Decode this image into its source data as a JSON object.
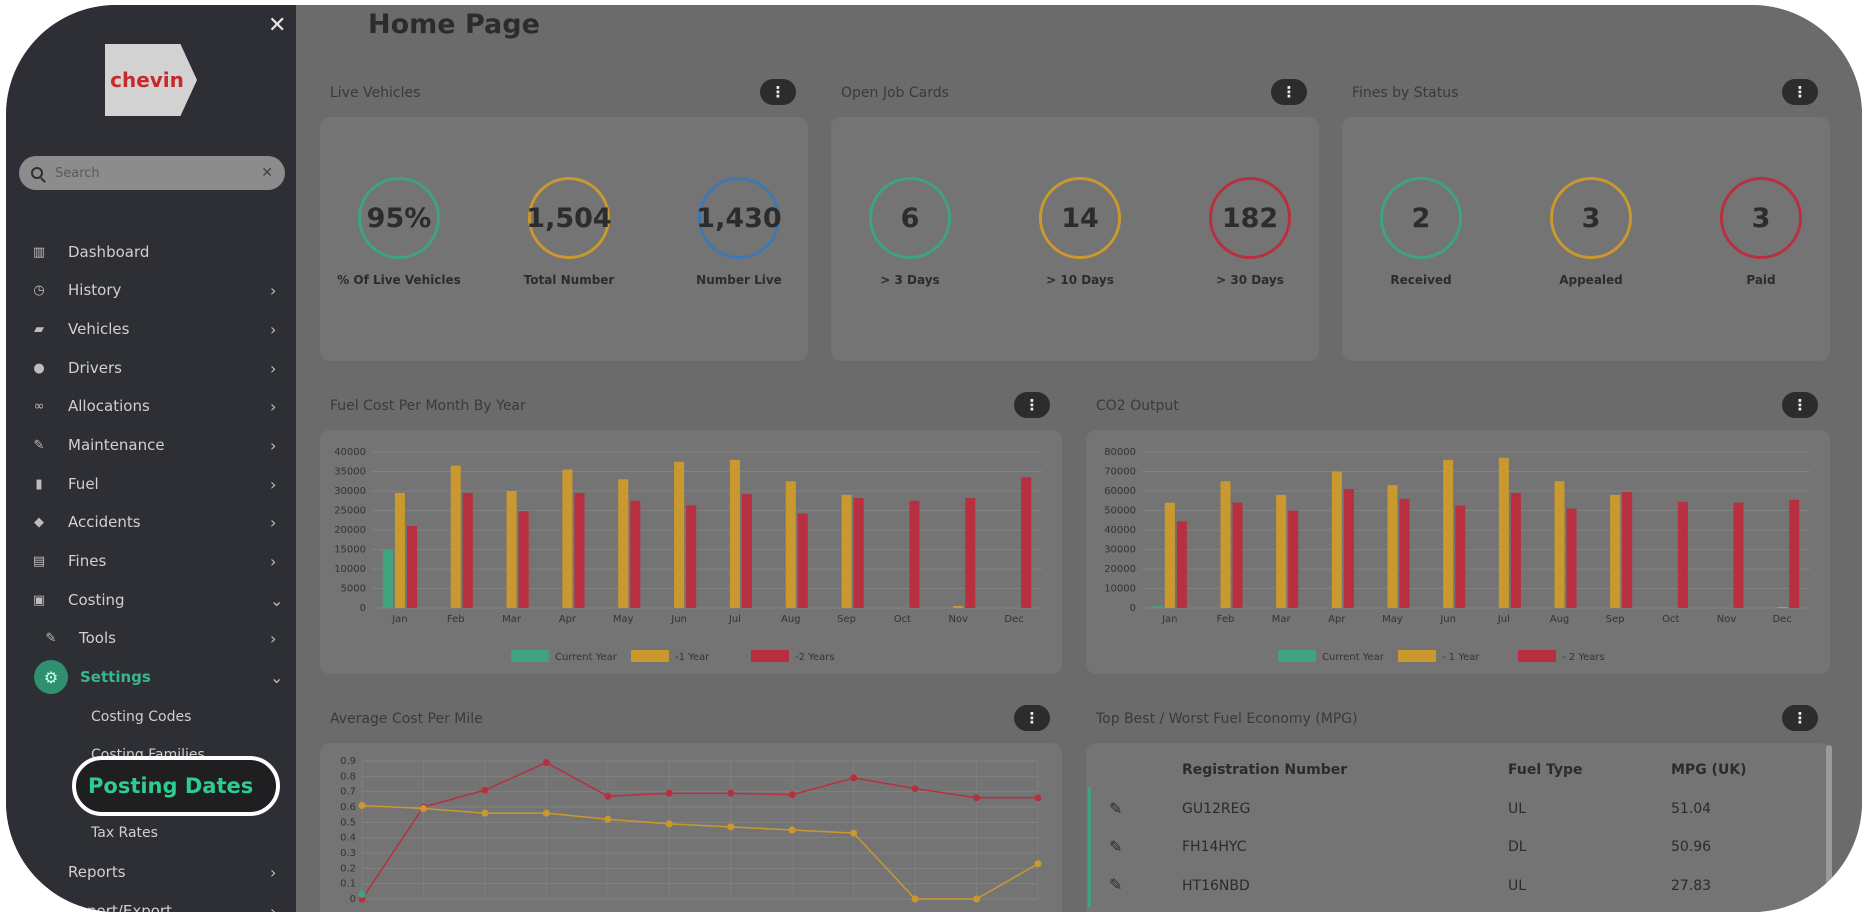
{
  "sidebar": {
    "logo_text": "chevin",
    "close_icon": "close-icon",
    "search": {
      "placeholder": "Search"
    },
    "items": [
      {
        "label": "Dashboard",
        "icon": "chart-icon"
      },
      {
        "label": "History",
        "icon": "clock-icon"
      },
      {
        "label": "Vehicles",
        "icon": "car-icon"
      },
      {
        "label": "Drivers",
        "icon": "user-icon"
      },
      {
        "label": "Allocations",
        "icon": "link-icon"
      },
      {
        "label": "Maintenance",
        "icon": "wrench-icon"
      },
      {
        "label": "Fuel",
        "icon": "fuel-icon"
      },
      {
        "label": "Accidents",
        "icon": "crash-icon"
      },
      {
        "label": "Fines",
        "icon": "document-icon"
      },
      {
        "label": "Costing",
        "icon": "money-icon"
      }
    ],
    "costing_children": {
      "tools": "Tools",
      "settings": "Settings",
      "settings_children": [
        "Costing Codes",
        "Costing Families",
        "Posting Dates",
        "Tax Rates"
      ]
    },
    "reports": "Reports",
    "import_export": "Import/Export"
  },
  "main": {
    "title": "Home Page",
    "live_vehicles": {
      "title": "Live Vehicles",
      "gauges": [
        {
          "value": "95%",
          "label": "% Of Live Vehicles",
          "color": "#3fa37e"
        },
        {
          "value": "1,504",
          "label": "Total Number",
          "color": "#c9992f"
        },
        {
          "value": "1,430",
          "label": "Number Live",
          "color": "#3e78b3"
        }
      ]
    },
    "open_job_cards": {
      "title": "Open Job Cards",
      "gauges": [
        {
          "value": "6",
          "label": "> 3 Days",
          "color": "#3fa37e"
        },
        {
          "value": "14",
          "label": "> 10 Days",
          "color": "#c9992f"
        },
        {
          "value": "182",
          "label": "> 30 Days",
          "color": "#b83040"
        }
      ]
    },
    "fines_by_status": {
      "title": "Fines by Status",
      "gauges": [
        {
          "value": "2",
          "label": "Received",
          "color": "#3fa37e"
        },
        {
          "value": "3",
          "label": "Appealed",
          "color": "#c9992f"
        },
        {
          "value": "3",
          "label": "Paid",
          "color": "#b83040"
        }
      ]
    },
    "fuel_cost_title": "Fuel Cost Per Month By Year",
    "co2_title": "CO2 Output",
    "avg_cost_title": "Average Cost Per Mile",
    "mpg_table": {
      "title": "Top Best / Worst Fuel Economy (MPG)",
      "headers": [
        "Registration Number",
        "Fuel Type",
        "MPG (UK)"
      ],
      "rows": [
        {
          "reg": "GU12REG",
          "fuel": "UL",
          "mpg": "51.04"
        },
        {
          "reg": "FH14HYC",
          "fuel": "DL",
          "mpg": "50.96"
        },
        {
          "reg": "HT16NBD",
          "fuel": "UL",
          "mpg": "27.83"
        }
      ]
    }
  },
  "chart_data": [
    {
      "type": "bar",
      "categories": [
        "Jan",
        "Feb",
        "Mar",
        "Apr",
        "May",
        "Jun",
        "Jul",
        "Aug",
        "Sep",
        "Oct",
        "Nov",
        "Dec"
      ],
      "ylim": [
        0,
        40000
      ],
      "yticks": [
        0,
        5000,
        10000,
        15000,
        20000,
        25000,
        30000,
        35000,
        40000
      ],
      "series": [
        {
          "name": "Current Year",
          "color": "#3fa37e",
          "values": [
            15000,
            0,
            0,
            0,
            0,
            0,
            0,
            0,
            0,
            0,
            0,
            0
          ]
        },
        {
          "name": "-1 Year",
          "color": "#c9992f",
          "values": [
            29500,
            36500,
            30000,
            35500,
            33000,
            37500,
            38000,
            32500,
            29000,
            0,
            500,
            0
          ]
        },
        {
          "name": "-2 Years",
          "color": "#b83040",
          "values": [
            21000,
            29500,
            24800,
            29500,
            27500,
            26300,
            29200,
            24200,
            28200,
            27500,
            28200,
            33500
          ]
        }
      ]
    },
    {
      "type": "bar",
      "categories": [
        "Jan",
        "Feb",
        "Mar",
        "Apr",
        "May",
        "Jun",
        "Jul",
        "Aug",
        "Sep",
        "Oct",
        "Nov",
        "Dec"
      ],
      "ylim": [
        0,
        80000
      ],
      "yticks": [
        0,
        10000,
        20000,
        30000,
        40000,
        50000,
        60000,
        70000,
        80000
      ],
      "series": [
        {
          "name": "Current Year",
          "color": "#3fa37e",
          "values": [
            1000,
            0,
            0,
            0,
            0,
            0,
            0,
            0,
            0,
            0,
            0,
            0
          ]
        },
        {
          "name": "- 1 Year",
          "color": "#c9992f",
          "values": [
            54000,
            65000,
            58000,
            70000,
            63000,
            76000,
            77000,
            65000,
            58000,
            0,
            0,
            500
          ]
        },
        {
          "name": "- 2 Years",
          "color": "#b83040",
          "values": [
            44500,
            54000,
            50000,
            61000,
            56000,
            52500,
            59000,
            51000,
            59500,
            54500,
            54000,
            55500
          ]
        }
      ]
    },
    {
      "type": "line",
      "ylim": [
        0,
        0.9
      ],
      "yticks": [
        0,
        0.1,
        0.2,
        0.3,
        0.4,
        0.5,
        0.6,
        0.7,
        0.8,
        0.9
      ],
      "series": [
        {
          "color": "#b83040",
          "values": [
            0,
            0.6,
            0.71,
            0.89,
            0.67,
            0.69,
            0.69,
            0.68,
            0.79,
            0.72,
            0.66,
            0.66
          ]
        },
        {
          "color": "#c9992f",
          "values": [
            0.61,
            0.59,
            0.56,
            0.56,
            0.52,
            0.49,
            0.47,
            0.45,
            0.43,
            0,
            0,
            0.23
          ]
        },
        {
          "color": "#3fa37e",
          "values": [
            0.03
          ]
        }
      ]
    }
  ]
}
